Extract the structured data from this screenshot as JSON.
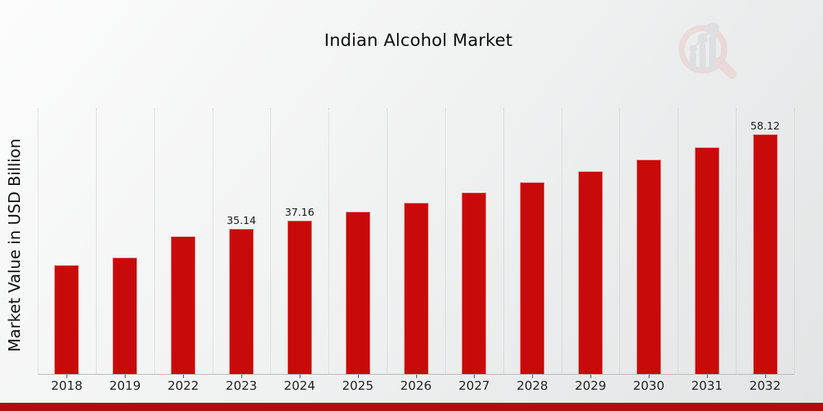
{
  "header": {
    "title": "Indian Alcohol Market"
  },
  "chart_data": {
    "type": "bar",
    "title": "Indian Alcohol Market",
    "xlabel": "",
    "ylabel": "Market Value in USD Billion",
    "categories": [
      "2018",
      "2019",
      "2022",
      "2023",
      "2024",
      "2025",
      "2026",
      "2027",
      "2028",
      "2029",
      "2030",
      "2031",
      "2032"
    ],
    "values": [
      26.4,
      28.2,
      33.3,
      35.14,
      37.16,
      39.3,
      41.56,
      43.95,
      46.48,
      49.15,
      51.98,
      54.97,
      58.12
    ],
    "shown_labels": {
      "2023": "35.14",
      "2024": "37.16",
      "2032": "58.12"
    },
    "ylim": [
      0,
      64.4
    ],
    "grid": "vertical-dotted",
    "legend": "none",
    "bar_color": "#c90a0a"
  },
  "colors": {
    "bar": "#c90a0a",
    "strip": "#b00e0e",
    "grid": "#c6c6c6",
    "axis": "#b2b2b2",
    "tick": "#3c3c3c",
    "bg_from": "#fcfcfc",
    "bg_to": "#e2e4e5",
    "logo_pink": "#e9caca",
    "logo_gray": "#d4d4d6"
  },
  "logo": {
    "icon": "magnifier-growth-chart-watermark"
  }
}
